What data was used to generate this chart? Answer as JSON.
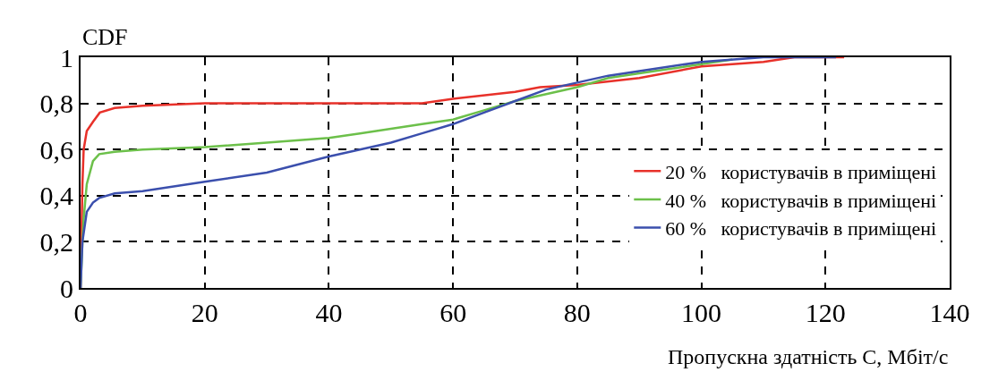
{
  "chart_data": {
    "type": "line",
    "xlabel": "Пропускна здатність C, Мбіт/с",
    "ylabel": "CDF",
    "xlim": [
      0,
      140
    ],
    "ylim": [
      0,
      1
    ],
    "xticks": [
      0,
      20,
      40,
      60,
      80,
      100,
      120,
      140
    ],
    "yticks": [
      0,
      {
        "value": 0.2,
        "label": "0,2"
      },
      {
        "value": 0.4,
        "label": "0,4"
      },
      {
        "value": 0.6,
        "label": "0,6"
      },
      {
        "value": 0.8,
        "label": "0,8"
      },
      1
    ],
    "grid": true,
    "legend": "right",
    "line_style": "solid",
    "marker": "none",
    "series": [
      {
        "name": "20 %   користувачів в приміщені",
        "color": "#e8312a",
        "x": [
          0,
          0.3,
          0.5,
          1,
          2,
          3.1,
          5.5,
          10,
          20,
          40,
          55,
          60,
          70,
          74,
          80,
          90,
          100,
          110,
          115,
          123
        ],
        "values": [
          0,
          0.45,
          0.6,
          0.68,
          0.72,
          0.76,
          0.78,
          0.79,
          0.8,
          0.8,
          0.8,
          0.82,
          0.85,
          0.87,
          0.88,
          0.91,
          0.96,
          0.98,
          1,
          1
        ]
      },
      {
        "name": "40 %   користувачів в приміщені",
        "color": "#6cc04a",
        "x": [
          0,
          0.3,
          0.5,
          1,
          2,
          3,
          5.5,
          10,
          20,
          30,
          40,
          45,
          50,
          55,
          60,
          65,
          70,
          75,
          80,
          85,
          90,
          100,
          105
        ],
        "values": [
          0,
          0.2,
          0.3,
          0.45,
          0.55,
          0.58,
          0.59,
          0.6,
          0.61,
          0.63,
          0.65,
          0.67,
          0.69,
          0.71,
          0.73,
          0.77,
          0.81,
          0.84,
          0.87,
          0.91,
          0.93,
          0.97,
          0.99
        ]
      },
      {
        "name": "60 %   користувачів в приміщені",
        "color": "#3b4fad",
        "x": [
          0,
          0.3,
          1,
          2,
          3,
          5.5,
          10,
          20,
          30,
          40,
          45,
          50,
          55,
          60,
          65,
          70,
          75,
          80,
          85,
          90,
          100,
          110,
          121.7
        ],
        "values": [
          0,
          0.2,
          0.33,
          0.37,
          0.39,
          0.41,
          0.42,
          0.46,
          0.5,
          0.57,
          0.6,
          0.63,
          0.67,
          0.71,
          0.76,
          0.81,
          0.86,
          0.89,
          0.92,
          0.94,
          0.98,
          1,
          1
        ]
      }
    ]
  }
}
